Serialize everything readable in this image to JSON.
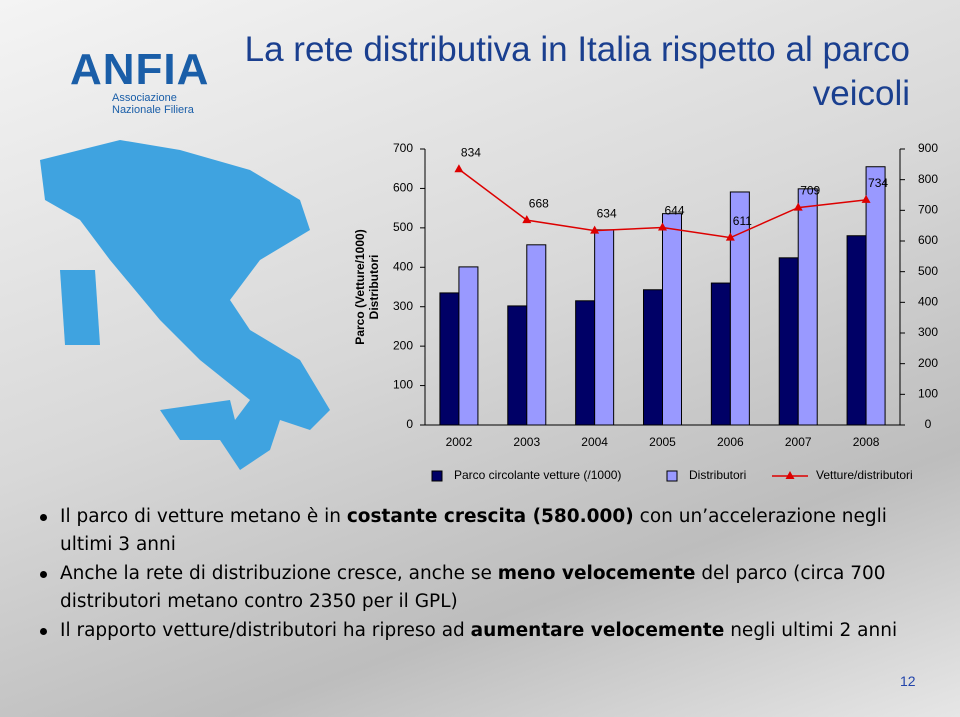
{
  "header": {
    "logo": "ANFIA",
    "logo_subtitle": "Associazione Nazionale Filiera",
    "title": "La rete distributiva in Italia rispetto al parco veicoli"
  },
  "chart_data": {
    "type": "bar",
    "y_label": [
      "Parco (Vetture/1000)",
      "Distributori"
    ],
    "categories": [
      "2002",
      "2003",
      "2004",
      "2005",
      "2006",
      "2007",
      "2008"
    ],
    "series": [
      {
        "name": "Parco circolante vetture (/1000)",
        "color": "#000066",
        "values": [
          335,
          302,
          315,
          343,
          360,
          424,
          480
        ]
      },
      {
        "name": "Distributori",
        "color": "#9999ff",
        "values": [
          401,
          457,
          495,
          536,
          591,
          599,
          655
        ]
      },
      {
        "name": "Vetture/distributori",
        "color": "#dd0000",
        "type": "line",
        "axis": "y2",
        "values": [
          834,
          668,
          634,
          644,
          611,
          709,
          734
        ]
      }
    ],
    "ylim": [
      0,
      700
    ],
    "yticks": [
      0,
      100,
      200,
      300,
      400,
      500,
      600,
      700
    ],
    "y2lim": [
      0,
      900
    ],
    "y2ticks": [
      0,
      100,
      200,
      300,
      400,
      500,
      600,
      700,
      800,
      900
    ],
    "legend": "bottom"
  },
  "bullets": [
    [
      {
        "text": "Il parco di vetture metano è in "
      },
      {
        "text": "costante crescita (580.000)",
        "bold": true
      },
      {
        "text": " con un’accelerazione negli ultimi 3 anni"
      }
    ],
    [
      {
        "text": "Anche la rete di distribuzione cresce, anche se "
      },
      {
        "text": "meno velocemente",
        "bold": true
      },
      {
        "text": " del parco (circa 700 distributori metano contro 2350 per il GPL)"
      }
    ],
    [
      {
        "text": "Il rapporto vetture/distributori ha ripreso ad "
      },
      {
        "text": "aumentare velocemente",
        "bold": true
      },
      {
        "text": " negli ultimi 2 anni"
      }
    ]
  ],
  "page_number": "12"
}
